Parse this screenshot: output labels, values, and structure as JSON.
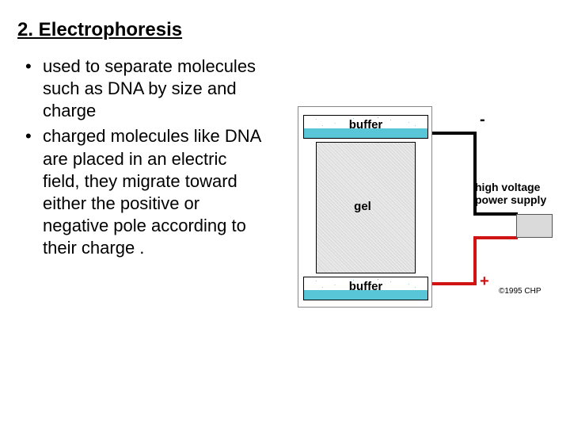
{
  "title": "2. Electrophoresis",
  "bullets": [
    "used to separate molecules such as DNA by size and charge",
    "charged molecules like DNA are placed in an electric field, they migrate toward either the positive or negative pole according to their charge ."
  ],
  "diagram": {
    "type": "infographic",
    "background_color": "#ffffff",
    "apparatus_border_color": "#888888",
    "buffer_top": {
      "label": "buffer",
      "fill_color": "#58c6d6",
      "speck_color": "#2aa0c8"
    },
    "buffer_bottom": {
      "label": "buffer",
      "fill_color": "#58c6d6",
      "speck_color": "#2aa0c8"
    },
    "gel": {
      "label": "gel",
      "fill_light": "#e9e9e9",
      "fill_dark": "#d7d7d7"
    },
    "wire_negative_color": "#000000",
    "wire_positive_color": "#d01414",
    "psu": {
      "fill": "#dadada",
      "border": "#555555",
      "label": "high voltage power supply"
    },
    "negative_sign": "-",
    "positive_sign": "+",
    "copyright": "©1995 CHP",
    "label_fontsize": 15,
    "label_fontweight": "bold"
  }
}
